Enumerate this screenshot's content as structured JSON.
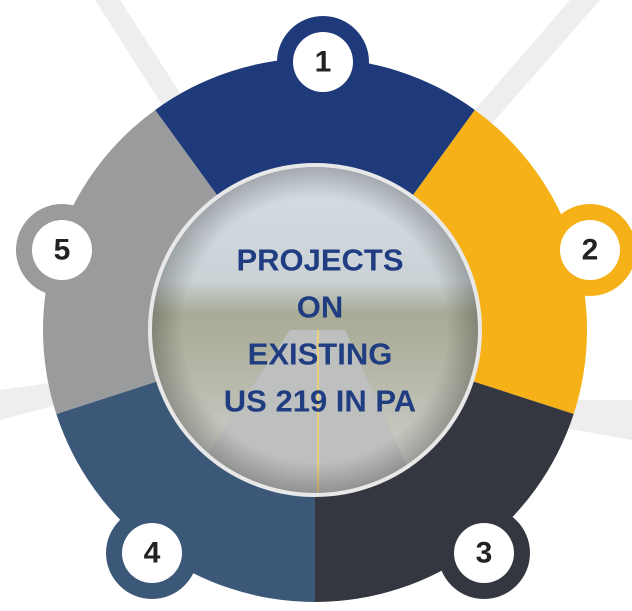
{
  "center": {
    "title_lines": [
      "PROJECTS",
      "ON",
      "EXISTING",
      "US 219 IN PA"
    ]
  },
  "segments": [
    {
      "label": "1"
    },
    {
      "label": "2"
    },
    {
      "label": "3"
    },
    {
      "label": "4"
    },
    {
      "label": "5"
    }
  ]
}
